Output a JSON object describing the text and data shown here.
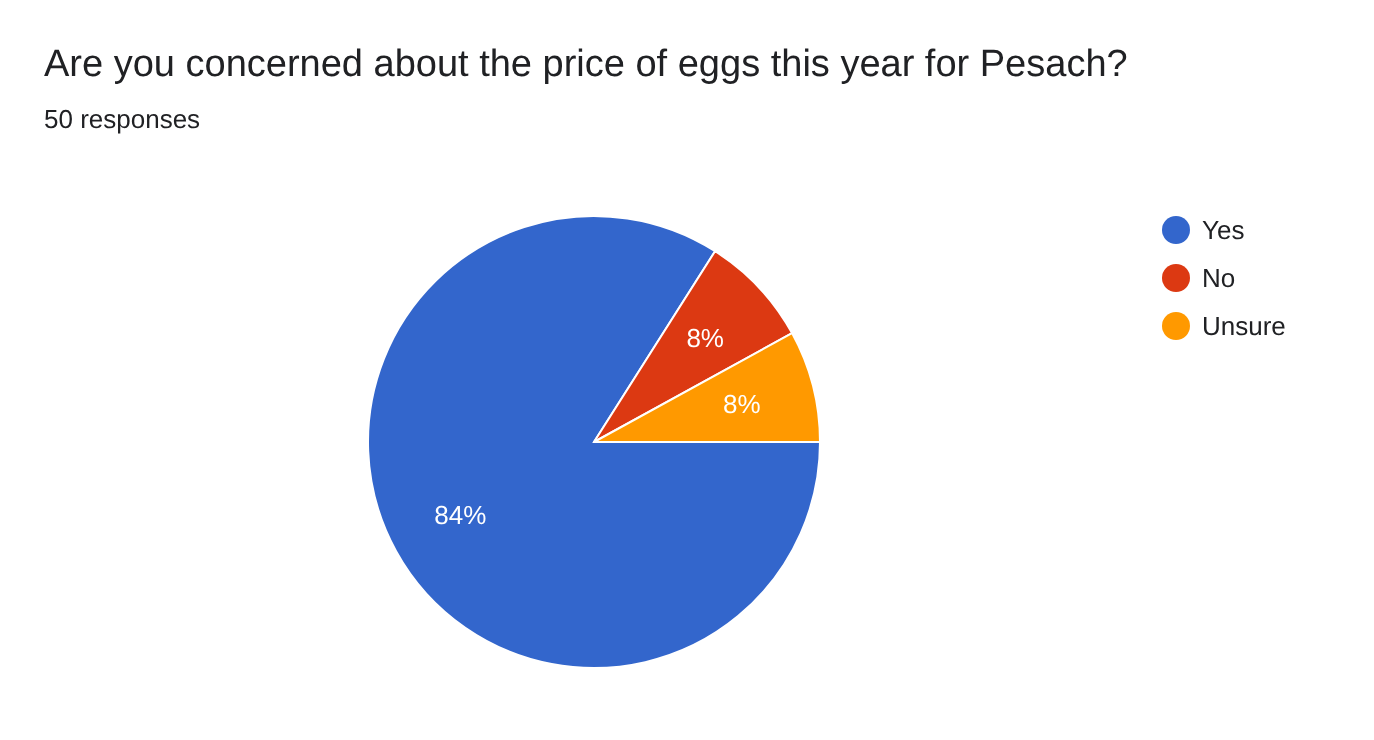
{
  "chart_data": {
    "type": "pie",
    "title": "Are you concerned about the price of eggs this year for Pesach?",
    "subtitle": "50 responses",
    "categories": [
      "Yes",
      "No",
      "Unsure"
    ],
    "values": [
      84,
      8,
      8
    ],
    "colors": [
      "#3366cc",
      "#dc3912",
      "#ff9900"
    ],
    "value_labels": [
      "84%",
      "8%",
      "8%"
    ],
    "legend": "right"
  }
}
